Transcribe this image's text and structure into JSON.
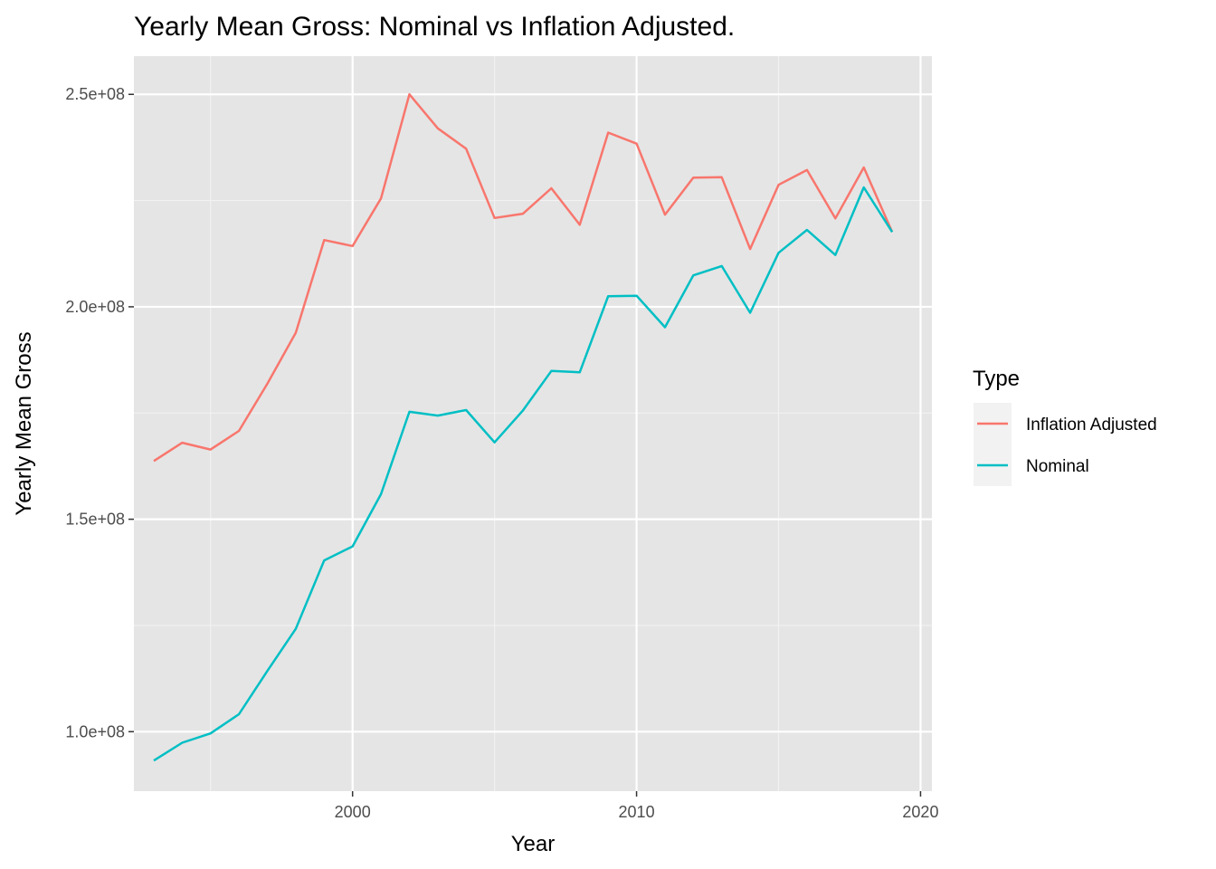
{
  "chart_data": {
    "type": "line",
    "title": "Yearly Mean Gross: Nominal vs Inflation Adjusted.",
    "xlabel": "Year",
    "ylabel": "Yearly Mean Gross",
    "xlim": [
      1992.3,
      2020.4
    ],
    "ylim": [
      86000000,
      259000000
    ],
    "x_ticks": [
      2000,
      2010,
      2020
    ],
    "x_tick_labels": [
      "2000",
      "2010",
      "2020"
    ],
    "x_minor_ticks": [
      1995,
      2005,
      2015
    ],
    "y_ticks": [
      100000000,
      150000000,
      200000000,
      250000000
    ],
    "y_tick_labels": [
      "1.0e+08",
      "1.5e+08",
      "2.0e+08",
      "2.5e+08"
    ],
    "y_minor_ticks": [
      125000000,
      175000000,
      225000000
    ],
    "grid": true,
    "background": "#e5e5e5",
    "legend": {
      "title": "Type",
      "position": "right"
    },
    "x": [
      1993,
      1994,
      1995,
      1996,
      1997,
      1998,
      1999,
      2000,
      2001,
      2002,
      2003,
      2004,
      2005,
      2006,
      2007,
      2008,
      2009,
      2010,
      2011,
      2012,
      2013,
      2014,
      2015,
      2016,
      2017,
      2018,
      2019
    ],
    "series": [
      {
        "name": "Inflation Adjusted",
        "color": "#f8766d",
        "values": [
          163700000,
          168000000,
          166400000,
          170800000,
          181900000,
          193900000,
          215700000,
          214300000,
          225500000,
          250000000,
          242000000,
          237200000,
          220900000,
          221900000,
          227900000,
          219300000,
          241000000,
          238400000,
          221700000,
          230400000,
          230500000,
          213600000,
          228700000,
          232200000,
          220800000,
          232800000,
          217600000
        ]
      },
      {
        "name": "Nominal",
        "color": "#00bfc4",
        "values": [
          93200000,
          97400000,
          99600000,
          104100000,
          114300000,
          124200000,
          140300000,
          143600000,
          155900000,
          175300000,
          174400000,
          175700000,
          168100000,
          175600000,
          184900000,
          184600000,
          202500000,
          202600000,
          195200000,
          207400000,
          209600000,
          198600000,
          212700000,
          218100000,
          212200000,
          228100000,
          217600000
        ]
      }
    ]
  }
}
